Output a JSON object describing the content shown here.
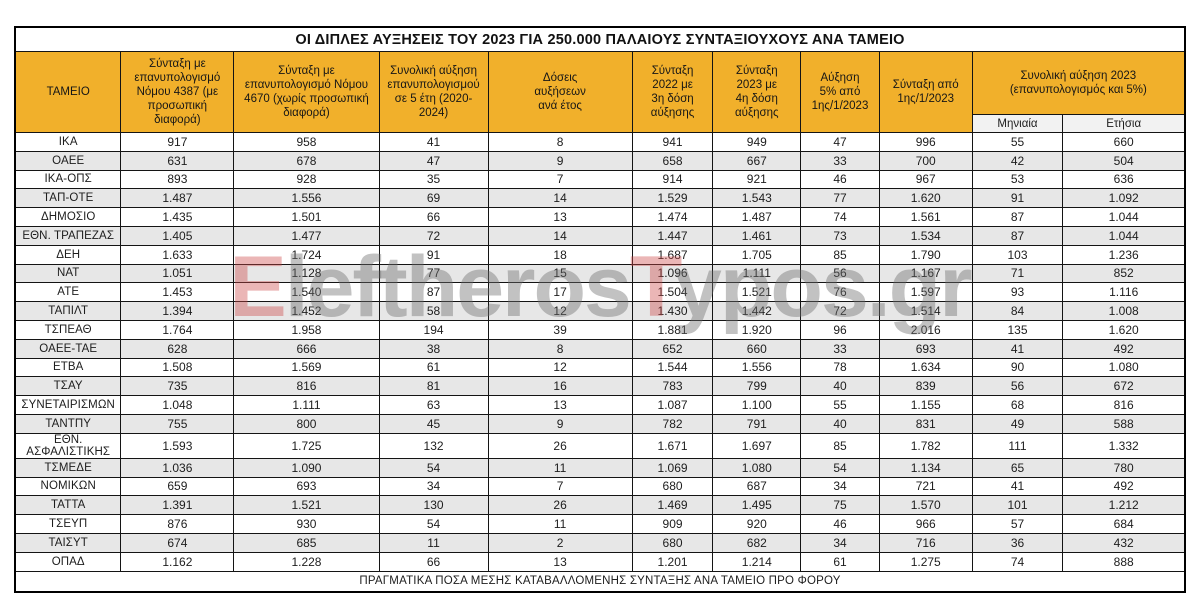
{
  "title": "ΟΙ ΔΙΠΛΕΣ ΑΥΞΗΣΕΙΣ ΤΟΥ 2023 ΓΙΑ 250.000 ΠΑΛΑΙΟΥΣ ΣΥΝΤΑΞΙΟΥΧΟΥΣ ΑΝΑ ΤΑΜΕΙΟ",
  "header": {
    "fund_label": "ΤΑΜΕΙΟ",
    "cols": [
      "Σύνταξη με\nεπανυπολογισμό\nΝόμου 4387 (με\nπροσωπική διαφορά)",
      "Σύνταξη με\nεπανυπολογισμό Νόμου\n4670 (χωρίς προσωπική\nδιαφορά)",
      "Συνολική αύξηση\nεπανυπολογισμού\nσε 5 έτη (2020-\n2024)",
      "Δόσεις\nαυξήσεων\nανά έτος",
      "Σύνταξη\n2022 με\n3η δόση\nαύξησης",
      "Σύνταξη\n2023 με\n4η δόση\nαύξησης",
      "Αύξηση\n5% από\n1ης/1/2023",
      "Σύνταξη από\n1ης/1/2023"
    ],
    "group_label": "Συνολική αύξηση 2023\n(επανυπολογισμός και 5%)",
    "sub_labels": {
      "monthly": "Μηνιαία",
      "yearly": "Ετήσια"
    }
  },
  "footer": "ΠΡΑΓΜΑΤΙΚΑ ΠΟΣΑ ΜΕΣΗΣ ΚΑΤΑΒΑΛΛΟΜΕΝΗΣ ΣΥΝΤΑΞΗΣ ΑΝΑ ΤΑΜΕΙΟ ΠΡΟ ΦΟΡΟΥ",
  "watermark": {
    "text": "EleftherosTypos.gr",
    "segments": [
      {
        "text": "E",
        "tone": "red"
      },
      {
        "text": "leftheros",
        "tone": "gray"
      },
      {
        "text": "T",
        "tone": "red"
      },
      {
        "text": "ypos.gr",
        "tone": "gray"
      }
    ]
  },
  "colors": {
    "header_yellow": "#F1B02B",
    "alt_row_gray": "#E7E7E7",
    "subheader_gray": "#F2F2F2",
    "border_black": "#141414",
    "watermark_red": "rgba(204,72,72,0.40)",
    "watermark_gray": "rgba(110,110,110,0.42)"
  },
  "chart_data": {
    "type": "table",
    "title": "ΟΙ ΔΙΠΛΕΣ ΑΥΞΗΣΕΙΣ ΤΟΥ 2023 ΓΙΑ 250.000 ΠΑΛΑΙΟΥΣ ΣΥΝΤΑΞΙΟΥΧΟΥΣ ΑΝΑ ΤΑΜΕΙΟ",
    "footnote": "ΠΡΑΓΜΑΤΙΚΑ ΠΟΣΑ ΜΕΣΗΣ ΚΑΤΑΒΑΛΛΟΜΕΝΗΣ ΣΥΝΤΑΞΗΣ ΑΝΑ ΤΑΜΕΙΟ ΠΡΟ ΦΟΡΟΥ",
    "columns": [
      "ΤΑΜΕΙΟ",
      "Σύνταξη με επανυπολογισμό Νόμου 4387 (με προσωπική διαφορά)",
      "Σύνταξη με επανυπολογισμό Νόμου 4670 (χωρίς προσωπική διαφορά)",
      "Συνολική αύξηση επανυπολογισμού σε 5 έτη (2020-2024)",
      "Δόσεις αυξήσεων ανά έτος",
      "Σύνταξη 2022 με 3η δόση αύξησης",
      "Σύνταξη 2023 με 4η δόση αύξησης",
      "Αύξηση 5% από 1ης/1/2023",
      "Σύνταξη από 1ης/1/2023",
      "Συνολική αύξηση 2023 Μηνιαία",
      "Συνολική αύξηση 2023 Ετήσια"
    ],
    "rows": [
      [
        "ΙΚΑ",
        "917",
        "958",
        "41",
        "8",
        "941",
        "949",
        "47",
        "996",
        "55",
        "660"
      ],
      [
        "ΟΑΕΕ",
        "631",
        "678",
        "47",
        "9",
        "658",
        "667",
        "33",
        "700",
        "42",
        "504"
      ],
      [
        "ΙΚΑ-ΟΠΣ",
        "893",
        "928",
        "35",
        "7",
        "914",
        "921",
        "46",
        "967",
        "53",
        "636"
      ],
      [
        "ΤΑΠ-ΟΤΕ",
        "1.487",
        "1.556",
        "69",
        "14",
        "1.529",
        "1.543",
        "77",
        "1.620",
        "91",
        "1.092"
      ],
      [
        "ΔΗΜΟΣΙΟ",
        "1.435",
        "1.501",
        "66",
        "13",
        "1.474",
        "1.487",
        "74",
        "1.561",
        "87",
        "1.044"
      ],
      [
        "ΕΘΝ. ΤΡΑΠΕΖΑΣ",
        "1.405",
        "1.477",
        "72",
        "14",
        "1.447",
        "1.461",
        "73",
        "1.534",
        "87",
        "1.044"
      ],
      [
        "ΔΕΗ",
        "1.633",
        "1.724",
        "91",
        "18",
        "1.687",
        "1.705",
        "85",
        "1.790",
        "103",
        "1.236"
      ],
      [
        "ΝΑΤ",
        "1.051",
        "1.128",
        "77",
        "15",
        "1.096",
        "1.111",
        "56",
        "1.167",
        "71",
        "852"
      ],
      [
        "ΑΤΕ",
        "1.453",
        "1.540",
        "87",
        "17",
        "1.504",
        "1.521",
        "76",
        "1.597",
        "93",
        "1.116"
      ],
      [
        "ΤΑΠΙΛΤ",
        "1.394",
        "1.452",
        "58",
        "12",
        "1.430",
        "1.442",
        "72",
        "1.514",
        "84",
        "1.008"
      ],
      [
        "ΤΣΠΕΑΘ",
        "1.764",
        "1.958",
        "194",
        "39",
        "1.881",
        "1.920",
        "96",
        "2.016",
        "135",
        "1.620"
      ],
      [
        "ΟΑΕΕ-ΤΑΕ",
        "628",
        "666",
        "38",
        "8",
        "652",
        "660",
        "33",
        "693",
        "41",
        "492"
      ],
      [
        "ΕΤΒΑ",
        "1.508",
        "1.569",
        "61",
        "12",
        "1.544",
        "1.556",
        "78",
        "1.634",
        "90",
        "1.080"
      ],
      [
        "ΤΣΑΥ",
        "735",
        "816",
        "81",
        "16",
        "783",
        "799",
        "40",
        "839",
        "56",
        "672"
      ],
      [
        "ΣΥΝΕΤΑΙΡΙΣΜΩΝ",
        "1.048",
        "1.111",
        "63",
        "13",
        "1.087",
        "1.100",
        "55",
        "1.155",
        "68",
        "816"
      ],
      [
        "ΤΑΝΤΠΥ",
        "755",
        "800",
        "45",
        "9",
        "782",
        "791",
        "40",
        "831",
        "49",
        "588"
      ],
      [
        "ΕΘΝ. ΑΣΦΑΛΙΣΤΙΚΗΣ",
        "1.593",
        "1.725",
        "132",
        "26",
        "1.671",
        "1.697",
        "85",
        "1.782",
        "111",
        "1.332"
      ],
      [
        "ΤΣΜΕΔΕ",
        "1.036",
        "1.090",
        "54",
        "11",
        "1.069",
        "1.080",
        "54",
        "1.134",
        "65",
        "780"
      ],
      [
        "ΝΟΜΙΚΩΝ",
        "659",
        "693",
        "34",
        "7",
        "680",
        "687",
        "34",
        "721",
        "41",
        "492"
      ],
      [
        "ΤΑΤΤΑ",
        "1.391",
        "1.521",
        "130",
        "26",
        "1.469",
        "1.495",
        "75",
        "1.570",
        "101",
        "1.212"
      ],
      [
        "ΤΣΕΥΠ",
        "876",
        "930",
        "54",
        "11",
        "909",
        "920",
        "46",
        "966",
        "57",
        "684"
      ],
      [
        "ΤΑΙΣΥΤ",
        "674",
        "685",
        "11",
        "2",
        "680",
        "682",
        "34",
        "716",
        "36",
        "432"
      ],
      [
        "ΟΠΑΔ",
        "1.162",
        "1.228",
        "66",
        "13",
        "1.201",
        "1.214",
        "61",
        "1.275",
        "74",
        "888"
      ]
    ]
  }
}
